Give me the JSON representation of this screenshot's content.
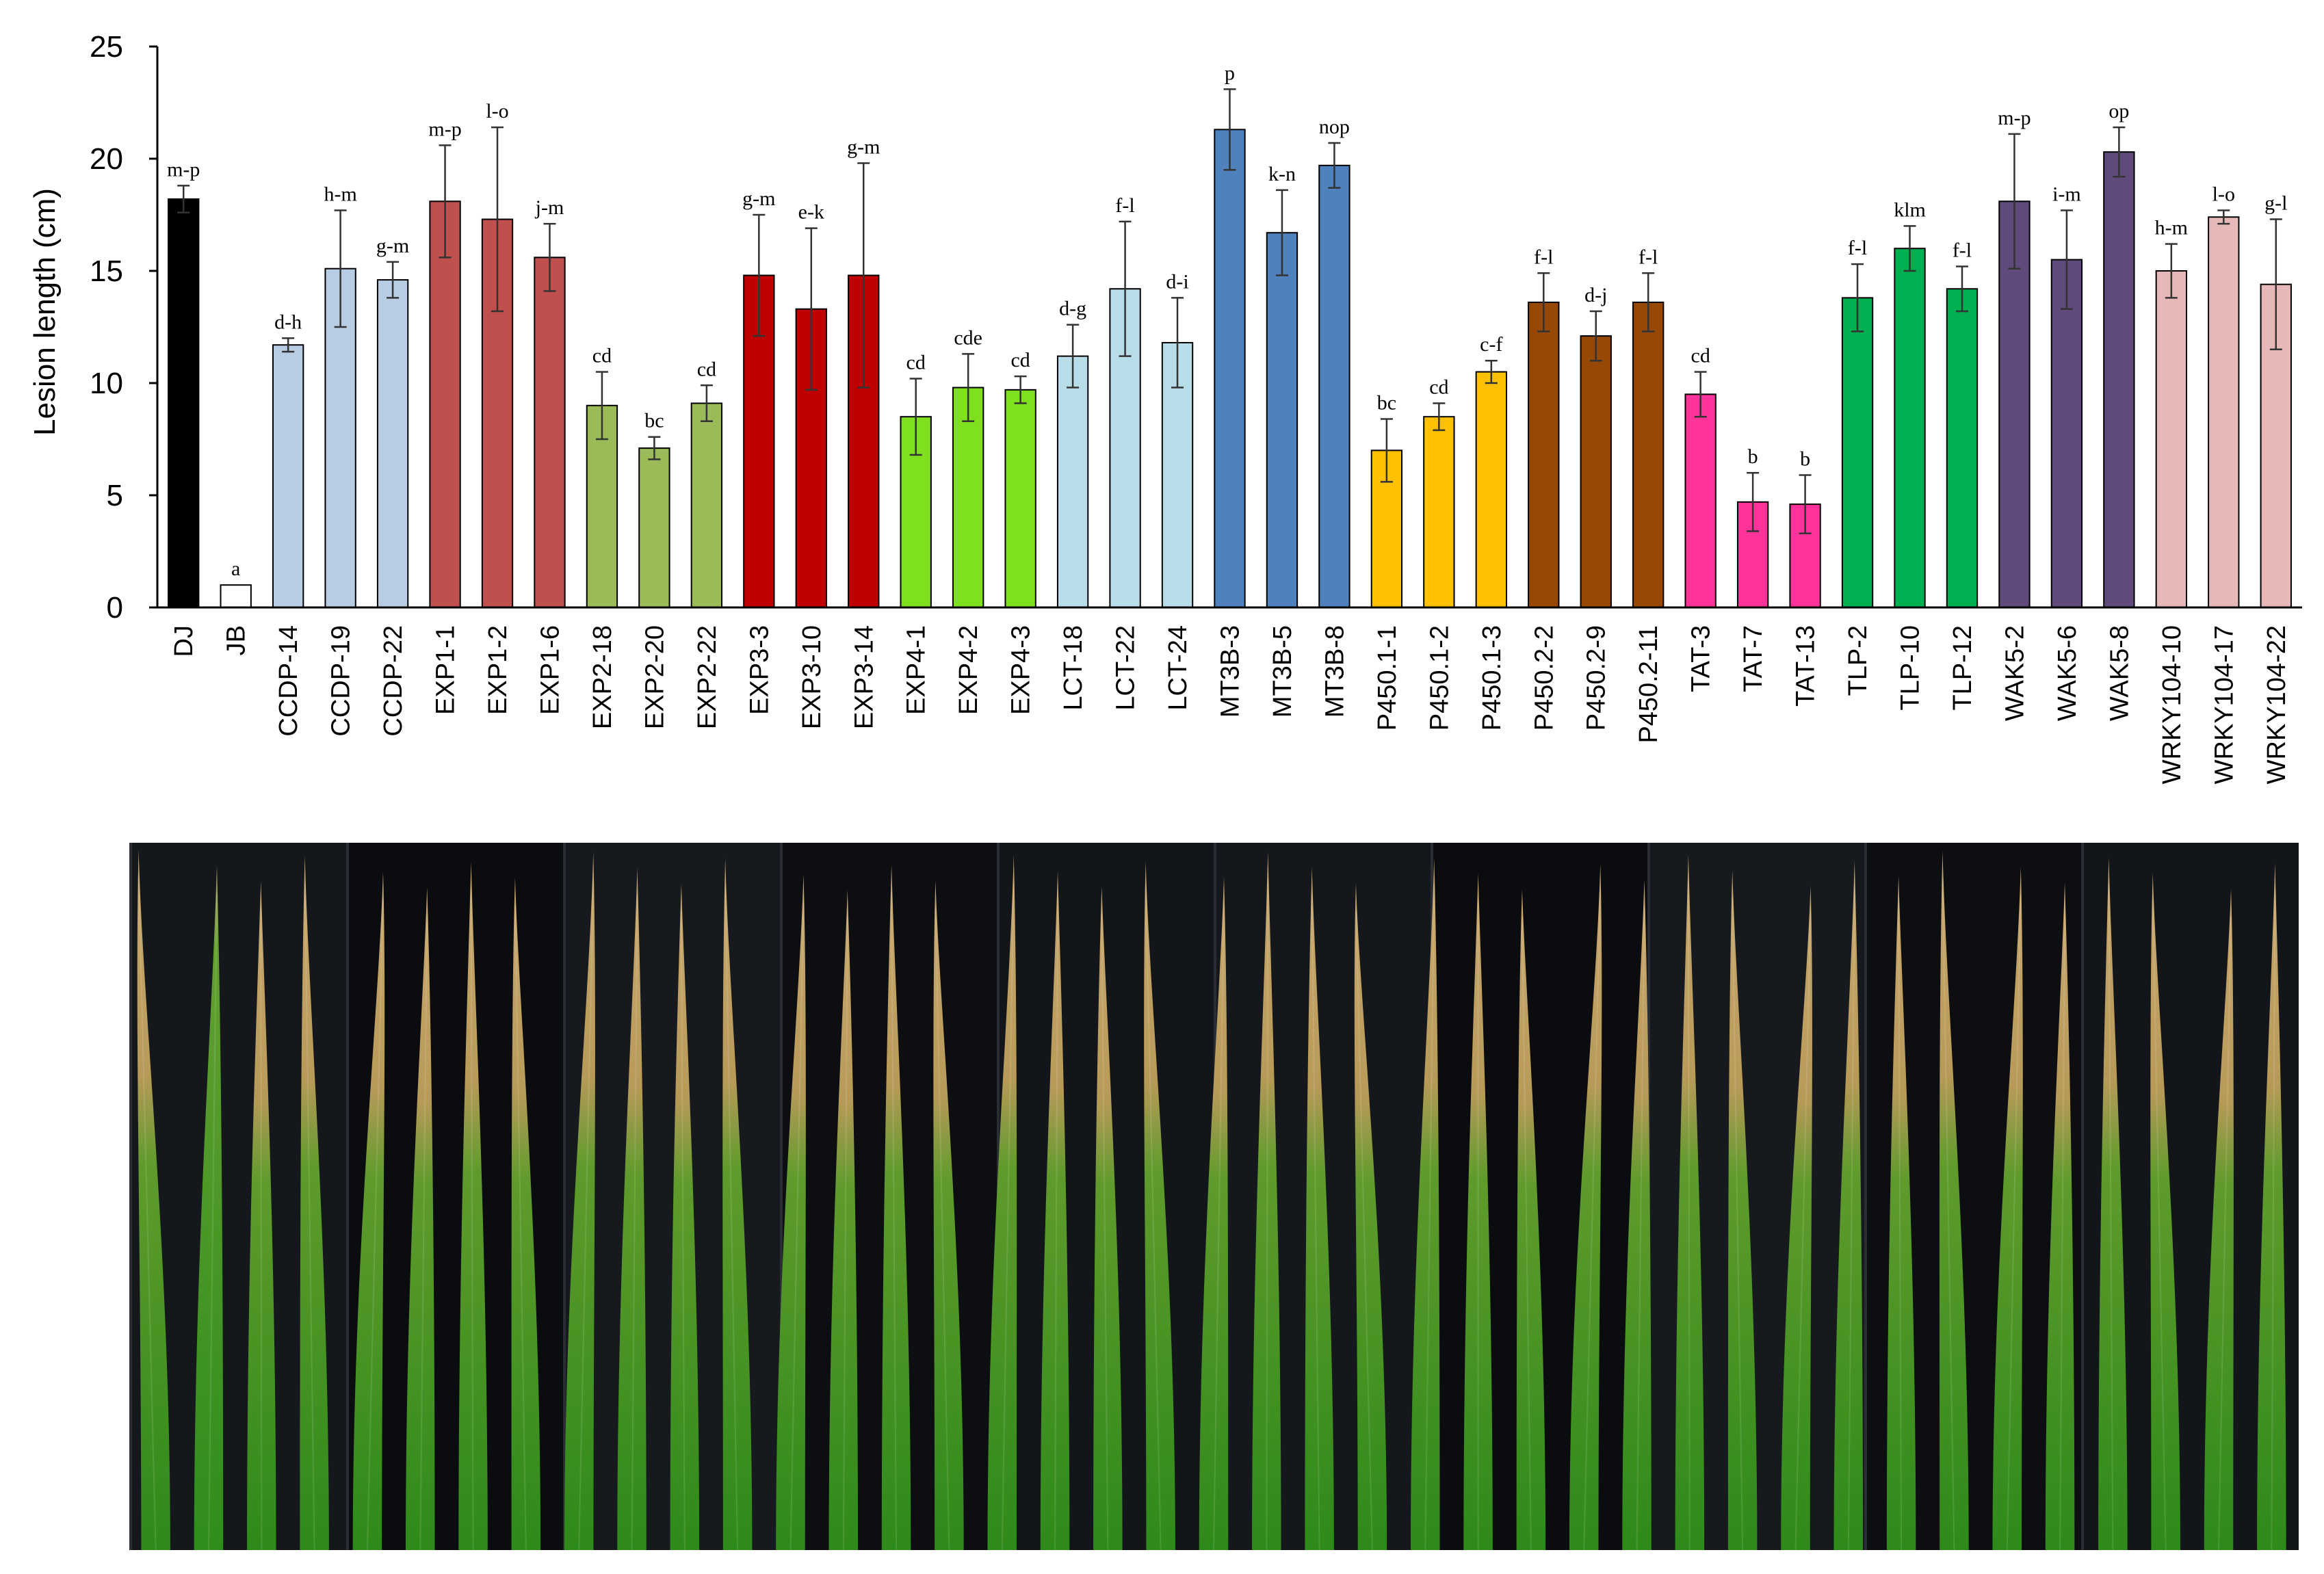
{
  "chart_data": {
    "type": "bar",
    "title": "",
    "xlabel": "",
    "ylabel": "Lesion length (cm)",
    "ylim": [
      0,
      25
    ],
    "yticks": [
      "0",
      "5",
      "10",
      "15",
      "20",
      "25"
    ],
    "grid": false,
    "legend": "none",
    "categories": [
      "DJ",
      "JB",
      "CCDP-14",
      "CCDP-19",
      "CCDP-22",
      "EXP1-1",
      "EXP1-2",
      "EXP1-6",
      "EXP2-18",
      "EXP2-20",
      "EXP2-22",
      "EXP3-3",
      "EXP3-10",
      "EXP3-14",
      "EXP4-1",
      "EXP4-2",
      "EXP4-3",
      "LCT-18",
      "LCT-22",
      "LCT-24",
      "MT3B-3",
      "MT3B-5",
      "MT3B-8",
      "P450.1-1",
      "P450.1-2",
      "P450.1-3",
      "P450.2-2",
      "P450.2-9",
      "P450.2-11",
      "TAT-3",
      "TAT-7",
      "TAT-13",
      "TLP-2",
      "TLP-10",
      "TLP-12",
      "WAK5-2",
      "WAK5-6",
      "WAK5-8",
      "WRKY104-10",
      "WRKY104-17",
      "WRKY104-22"
    ],
    "values": [
      18.2,
      1.0,
      11.7,
      15.1,
      14.6,
      18.1,
      17.3,
      15.6,
      9.0,
      7.1,
      9.1,
      14.8,
      13.3,
      14.8,
      8.5,
      9.8,
      9.7,
      11.2,
      14.2,
      11.8,
      21.3,
      16.7,
      19.7,
      7.0,
      8.5,
      10.5,
      13.6,
      12.1,
      13.6,
      9.5,
      4.7,
      4.6,
      13.8,
      16.0,
      14.2,
      18.1,
      15.5,
      20.3,
      15.0,
      17.4,
      14.4
    ],
    "errors": [
      0.6,
      0.0,
      0.3,
      2.6,
      0.8,
      2.5,
      4.1,
      1.5,
      1.5,
      0.5,
      0.8,
      2.7,
      3.6,
      5.0,
      1.7,
      1.5,
      0.6,
      1.4,
      3.0,
      2.0,
      1.8,
      1.9,
      1.0,
      1.4,
      0.6,
      0.5,
      1.3,
      1.1,
      1.3,
      1.0,
      1.3,
      1.3,
      1.5,
      1.0,
      1.0,
      3.0,
      2.2,
      1.1,
      1.2,
      0.3,
      2.9
    ],
    "labels": [
      "m-p",
      "a",
      "d-h",
      "h-m",
      "g-m",
      "m-p",
      "l-o",
      "j-m",
      "cd",
      "bc",
      "cd",
      "g-m",
      "e-k",
      "g-m",
      "cd",
      "cde",
      "cd",
      "d-g",
      "f-l",
      "d-i",
      "p",
      "k-n",
      "nop",
      "bc",
      "cd",
      "c-f",
      "f-l",
      "d-j",
      "f-l",
      "cd",
      "b",
      "b",
      "f-l",
      "klm",
      "f-l",
      "m-p",
      "i-m",
      "op",
      "h-m",
      "l-o",
      "g-l"
    ],
    "colors": [
      "#000000",
      "#ffffff",
      "#b8cce4",
      "#b8cce4",
      "#b8cce4",
      "#c0504d",
      "#c0504d",
      "#c0504d",
      "#9bbb59",
      "#9bbb59",
      "#9bbb59",
      "#c00000",
      "#c00000",
      "#c00000",
      "#7fe01f",
      "#7fe01f",
      "#7fe01f",
      "#b7dde8",
      "#b7dde8",
      "#b7dde8",
      "#4f81bd",
      "#4f81bd",
      "#4f81bd",
      "#ffc000",
      "#ffc000",
      "#ffc000",
      "#974706",
      "#974706",
      "#974706",
      "#ff3399",
      "#ff3399",
      "#ff3399",
      "#00b050",
      "#00b050",
      "#00b050",
      "#604a7b",
      "#604a7b",
      "#604a7b",
      "#e6b9b8",
      "#e6b9b8",
      "#e6b9b8"
    ]
  },
  "photo": {
    "panels": 10,
    "leaf_count": 41
  }
}
